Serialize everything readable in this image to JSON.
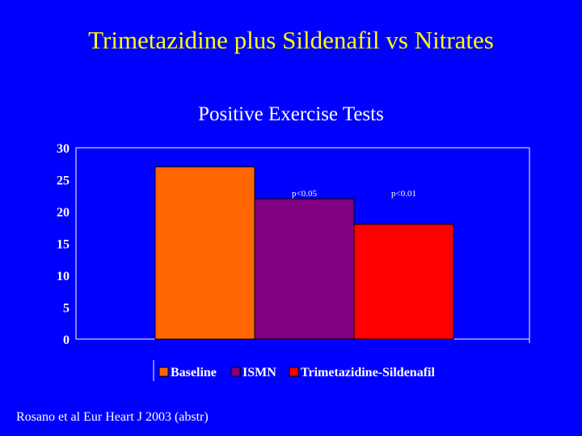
{
  "slide": {
    "title": "Trimetazidine plus Sildenafil vs Nitrates",
    "footer": "Rosano et al Eur Heart J 2003 (abstr)"
  },
  "chart_data": {
    "type": "bar",
    "title": "Positive Exercise Tests",
    "xlabel": "",
    "ylabel": "",
    "ylim": [
      0,
      30
    ],
    "yticks": [
      0,
      5,
      10,
      15,
      20,
      25,
      30
    ],
    "grid": false,
    "legend_position": "bottom",
    "series": [
      {
        "name": "Baseline",
        "values": [
          27
        ],
        "color": "#ff6600",
        "annotation": ""
      },
      {
        "name": "ISMN",
        "values": [
          22
        ],
        "color": "#800080",
        "annotation": "p<0.05"
      },
      {
        "name": "Trimetazidine-Sildenafil",
        "values": [
          18
        ],
        "color": "#ff0000",
        "annotation": "p<0.01"
      }
    ]
  },
  "colors": {
    "background": "#0000ff",
    "title": "#ffff00",
    "text": "#ffffff"
  }
}
